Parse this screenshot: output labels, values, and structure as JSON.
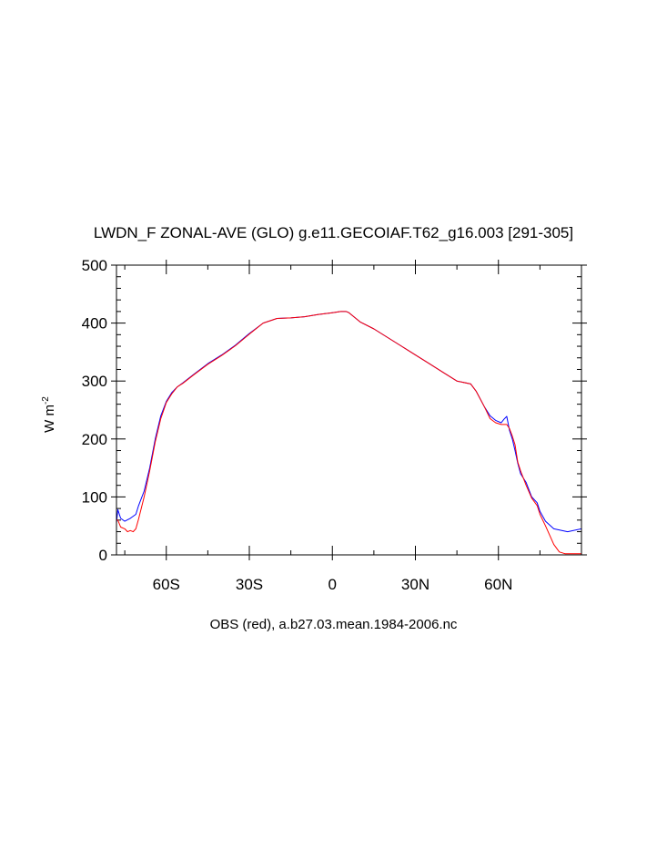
{
  "chart_data": {
    "type": "line",
    "title": "LWDN_F ZONAL-AVE (GLO) g.e11.GECOIAF.T62_g16.003 [291-305]",
    "xlabel": "OBS (red), a.b27.03.mean.1984-2006.nc",
    "ylabel": "W m",
    "ylabel_exponent": "-2",
    "xlim": [
      -78,
      90
    ],
    "ylim": [
      0,
      500
    ],
    "x_ticks": [
      {
        "value": -60,
        "label": "60S"
      },
      {
        "value": -30,
        "label": "30S"
      },
      {
        "value": 0,
        "label": "0"
      },
      {
        "value": 30,
        "label": "30N"
      },
      {
        "value": 60,
        "label": "60N"
      }
    ],
    "y_ticks": [
      0,
      100,
      200,
      300,
      400,
      500
    ],
    "colors": {
      "model": "#0000ff",
      "obs": "#ff0000",
      "axis": "#000000"
    },
    "series": [
      {
        "name": "model",
        "color": "#0000ff",
        "x": [
          -78,
          -77.5,
          -76.5,
          -75,
          -73,
          -71,
          -70,
          -68,
          -66,
          -64,
          -62,
          -60,
          -58,
          -56,
          -54,
          -50,
          -45,
          -40,
          -35,
          -30,
          -25,
          -20,
          -15,
          -10,
          -5,
          0,
          3,
          5,
          6,
          8,
          10,
          15,
          20,
          25,
          30,
          35,
          40,
          45,
          50,
          52,
          55,
          57,
          59,
          61,
          62,
          63,
          64,
          65,
          66,
          67,
          68,
          70,
          72,
          74,
          75,
          77,
          80,
          85,
          90
        ],
        "y": [
          55,
          78,
          63,
          58,
          63,
          70,
          85,
          110,
          150,
          200,
          240,
          265,
          280,
          290,
          297,
          312,
          330,
          345,
          362,
          382,
          400,
          408,
          409,
          411,
          415,
          418,
          420,
          420,
          418,
          410,
          402,
          390,
          375,
          360,
          345,
          330,
          315,
          300,
          295,
          282,
          255,
          240,
          232,
          228,
          234,
          239,
          215,
          200,
          180,
          158,
          140,
          125,
          100,
          90,
          75,
          58,
          45,
          40,
          45
        ]
      },
      {
        "name": "obs",
        "color": "#ff0000",
        "x": [
          -78,
          -77.5,
          -76.5,
          -75,
          -74,
          -73,
          -72,
          -71,
          -70,
          -68,
          -66,
          -64,
          -62,
          -60,
          -58,
          -56,
          -54,
          -50,
          -45,
          -40,
          -35,
          -30,
          -25,
          -20,
          -15,
          -10,
          -5,
          0,
          3,
          5,
          6,
          8,
          10,
          15,
          20,
          25,
          30,
          35,
          40,
          45,
          50,
          52,
          55,
          57,
          59,
          61,
          62,
          63,
          64,
          65,
          66,
          67,
          68,
          70,
          72,
          74,
          75,
          77,
          80,
          82,
          84,
          86,
          90
        ],
        "y": [
          60,
          60,
          48,
          45,
          40,
          42,
          40,
          45,
          62,
          100,
          145,
          195,
          235,
          263,
          278,
          290,
          296,
          311,
          329,
          344,
          361,
          381,
          400,
          408,
          409,
          411,
          415,
          418,
          420,
          420,
          418,
          410,
          402,
          390,
          375,
          360,
          345,
          330,
          315,
          300,
          295,
          282,
          255,
          235,
          228,
          225,
          225,
          225,
          218,
          205,
          190,
          160,
          145,
          120,
          98,
          85,
          70,
          50,
          18,
          5,
          2,
          2,
          2
        ]
      }
    ]
  }
}
